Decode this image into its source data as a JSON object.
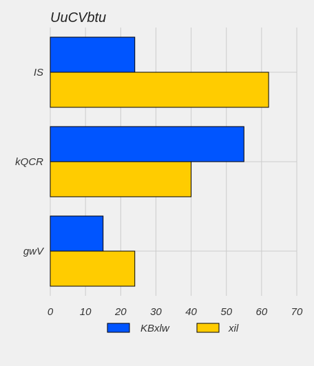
{
  "chart_data": {
    "type": "bar",
    "orientation": "horizontal",
    "title": "UuCVbtu",
    "xlabel": "",
    "ylabel": "",
    "categories": [
      "IS",
      "kQCR",
      "gwV"
    ],
    "series": [
      {
        "name": "KBxlw",
        "values": [
          24,
          55,
          15
        ],
        "color": "#0055ff"
      },
      {
        "name": "xil",
        "values": [
          62,
          40,
          24
        ],
        "color": "#ffcc00"
      }
    ],
    "xlim": [
      0,
      70
    ],
    "xticks": [
      0,
      10,
      20,
      30,
      40,
      50,
      60,
      70
    ],
    "grid": true,
    "legend_position": "bottom",
    "background": "#f0f0f0"
  }
}
